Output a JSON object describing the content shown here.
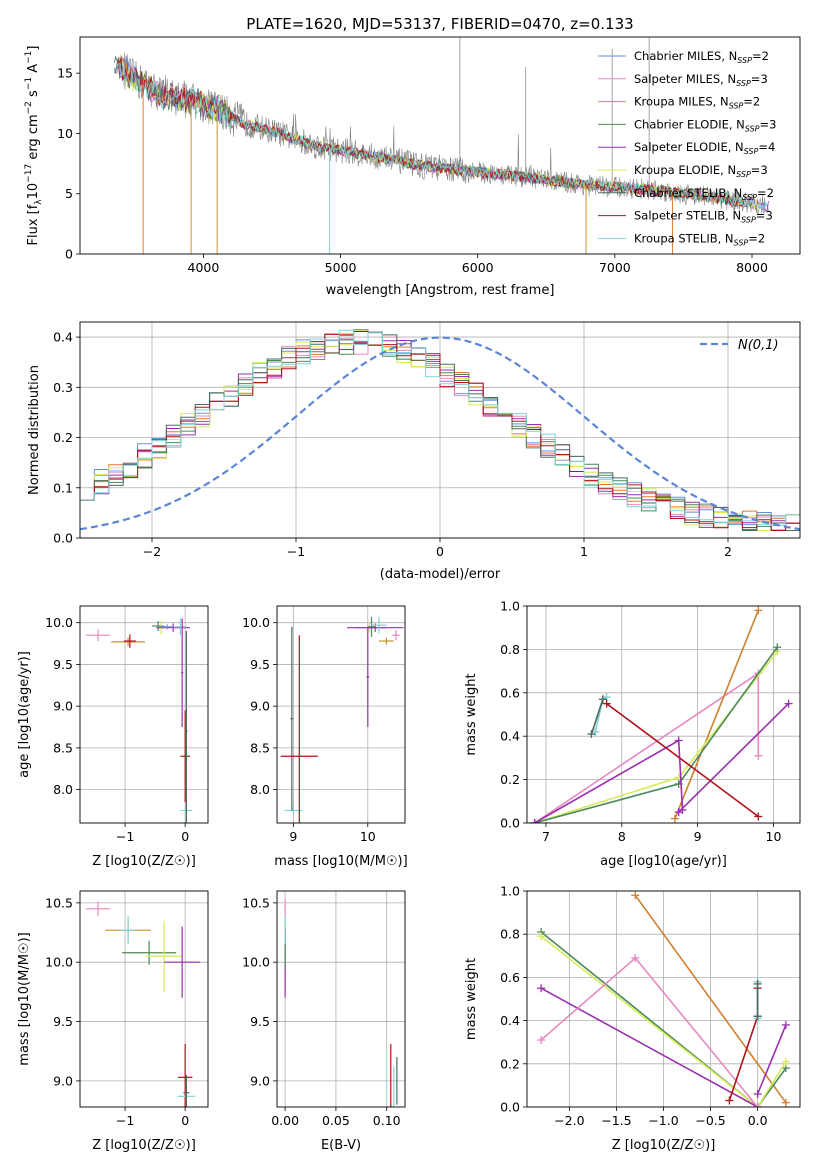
{
  "figure_title": "PLATE=1620, MJD=53137, FIBERID=0470, z=0.133",
  "series_styles": [
    {
      "name": "Chabrier MILES",
      "nssp": "2",
      "color": "#6a8fd6"
    },
    {
      "name": "Salpeter MILES",
      "nssp": "3",
      "color": "#e888c0"
    },
    {
      "name": "Kroupa MILES",
      "nssp": "2",
      "color": "#c8922e"
    },
    {
      "name": "Chabrier ELODIE",
      "nssp": "3",
      "color": "#4d8a5a"
    },
    {
      "name": "Salpeter ELODIE",
      "nssp": "4",
      "color": "#9b2fae"
    },
    {
      "name": "Kroupa ELODIE",
      "nssp": "3",
      "color": "#d6ec5a"
    },
    {
      "name": "Chabrier STELIB",
      "nssp": "2",
      "color": "#4a6a5a"
    },
    {
      "name": "Salpeter STELIB",
      "nssp": "3",
      "color": "#b0101a"
    },
    {
      "name": "Kroupa STELIB",
      "nssp": "2",
      "color": "#7fd3d8"
    }
  ],
  "chart_data": [
    {
      "id": "spectrum",
      "type": "line",
      "xlabel": "wavelength [Angstrom, rest frame]",
      "ylabel_parts": {
        "a": "Flux [f",
        "b": "λ",
        "c": "10",
        "d": "−17",
        "e": " erg cm",
        "f": "−2",
        "g": " s",
        "h": "−1",
        "i": " A",
        "j": "−1",
        "k": "]"
      },
      "xlim": [
        3100,
        8350
      ],
      "ylim": [
        0,
        18
      ],
      "xticks": [
        4000,
        5000,
        6000,
        7000,
        8000
      ],
      "yticks": [
        0,
        5,
        10,
        15
      ],
      "grid": false,
      "legend": "upper right",
      "legend_suffix": {
        "n": ", N",
        "sub": "SSP",
        "eq": "="
      },
      "data_color": "#808080",
      "continuum": {
        "x": [
          3350,
          3500,
          3700,
          3900,
          4100,
          4300,
          4500,
          4800,
          5200,
          5600,
          6000,
          6400,
          6800,
          7200,
          7600,
          8100
        ],
        "y": [
          16.0,
          14.5,
          13.2,
          12.8,
          12.0,
          10.8,
          10.2,
          9.0,
          8.2,
          7.3,
          6.8,
          6.3,
          5.7,
          5.4,
          4.9,
          4.0
        ]
      }
    },
    {
      "id": "residuals",
      "type": "step",
      "xlabel": "(data-model)/error",
      "ylabel": "Normed distribution",
      "xlim": [
        -2.5,
        2.5
      ],
      "ylim": [
        0,
        0.43
      ],
      "xticks": [
        -2,
        -1,
        0,
        1,
        2
      ],
      "yticks": [
        0.0,
        0.1,
        0.2,
        0.3,
        0.4
      ],
      "grid": true,
      "legend": "upper right",
      "normal_label": "N(0,1)",
      "normal_color": "#5b86d6",
      "bin_width": 0.1
    },
    {
      "id": "age-vs-Z",
      "type": "errorbar",
      "xlabel": "Z [log10(Z/Z☉)]",
      "ylabel": "age  [log10(age/yr)]",
      "xlim": [
        -1.75,
        0.38
      ],
      "ylim": [
        7.6,
        10.2
      ],
      "xticks": [
        -1,
        0
      ],
      "yticks": [
        8.0,
        8.5,
        9.0,
        9.5,
        10.0
      ],
      "grid": true,
      "points": [
        {
          "s": 1,
          "x": -1.45,
          "y": 9.85,
          "xe": 0.2,
          "ye": 0.07
        },
        {
          "s": 2,
          "x": -0.95,
          "y": 9.77,
          "xe": 0.28,
          "ye": 0.05
        },
        {
          "s": 7,
          "x": -0.92,
          "y": 9.78,
          "xe": 0.1,
          "ye": 0.08
        },
        {
          "s": 3,
          "x": -0.45,
          "y": 9.96,
          "xe": 0.1,
          "ye": 0.06
        },
        {
          "s": 5,
          "x": -0.4,
          "y": 9.94,
          "xe": 0.05,
          "ye": 0.08
        },
        {
          "s": 4,
          "x": -0.2,
          "y": 9.94,
          "xe": 0.28,
          "ye": 0.05
        },
        {
          "s": 0,
          "x": -0.3,
          "y": 9.95,
          "xe": 0.12,
          "ye": 0.03
        },
        {
          "s": 8,
          "x": -0.08,
          "y": 9.95,
          "xe": 0.08,
          "ye": 0.1
        },
        {
          "s": 4,
          "x": -0.05,
          "y": 9.4,
          "xe": 0.02,
          "ye": 0.65
        },
        {
          "s": 7,
          "x": 0.0,
          "y": 8.4,
          "xe": 0.08,
          "ye": 0.55
        },
        {
          "s": 8,
          "x": 0.02,
          "y": 7.75,
          "xe": 0.1,
          "ye": 0.05
        },
        {
          "s": 6,
          "x": 0.02,
          "y": 8.7,
          "xe": 0.02,
          "ye": 1.2
        }
      ]
    },
    {
      "id": "age-vs-mass",
      "type": "errorbar",
      "xlabel": "mass [log10(M/M☉)]",
      "ylabel": "",
      "xlim": [
        8.78,
        10.5
      ],
      "ylim": [
        7.6,
        10.2
      ],
      "xticks": [
        9,
        10
      ],
      "yticks": [
        8.0,
        8.5,
        9.0,
        9.5,
        10.0
      ],
      "grid": true,
      "points": [
        {
          "s": 8,
          "x": 9.0,
          "y": 7.75,
          "xe": 0.12,
          "ye": 0.05
        },
        {
          "s": 6,
          "x": 8.98,
          "y": 8.85,
          "xe": 0.02,
          "ye": 1.1
        },
        {
          "s": 7,
          "x": 9.08,
          "y": 8.4,
          "xe": 0.25,
          "ye": 1.45
        },
        {
          "s": 4,
          "x": 10.0,
          "y": 9.35,
          "xe": 0.02,
          "ye": 0.6
        },
        {
          "s": 5,
          "x": 10.02,
          "y": 9.94,
          "xe": 0.05,
          "ye": 0.06
        },
        {
          "s": 0,
          "x": 10.05,
          "y": 9.94,
          "xe": 0.2,
          "ye": 0.03
        },
        {
          "s": 3,
          "x": 10.05,
          "y": 9.95,
          "xe": 0.05,
          "ye": 0.12
        },
        {
          "s": 4,
          "x": 10.1,
          "y": 9.94,
          "xe": 0.38,
          "ye": 0.05
        },
        {
          "s": 8,
          "x": 10.15,
          "y": 9.97,
          "xe": 0.1,
          "ye": 0.1
        },
        {
          "s": 1,
          "x": 10.38,
          "y": 9.85,
          "xe": 0.05,
          "ye": 0.06
        },
        {
          "s": 2,
          "x": 10.25,
          "y": 9.78,
          "xe": 0.1,
          "ye": 0.04
        }
      ]
    },
    {
      "id": "weight-vs-age",
      "type": "line",
      "xlabel": "age  [log10(age/yr)]",
      "ylabel": "mass weight",
      "xlim": [
        6.75,
        10.35
      ],
      "ylim": [
        0,
        1
      ],
      "xticks": [
        7,
        8,
        9,
        10
      ],
      "yticks": [
        0.0,
        0.2,
        0.4,
        0.6,
        0.8,
        1.0
      ],
      "grid": true,
      "lines": [
        {
          "s": 8,
          "x": [
            7.65,
            7.75,
            7.8
          ],
          "y": [
            0.42,
            0.57,
            0.58
          ]
        },
        {
          "s": 6,
          "x": [
            7.6,
            7.75
          ],
          "y": [
            0.41,
            0.57
          ]
        },
        {
          "s": 1,
          "x": [
            6.85,
            9.8,
            9.8
          ],
          "y": [
            0.0,
            0.69,
            0.31
          ]
        },
        {
          "s": 2,
          "x": [
            8.7,
            9.8
          ],
          "y": [
            0.02,
            0.98
          ]
        },
        {
          "s": 5,
          "x": [
            6.85,
            8.75,
            10.05
          ],
          "y": [
            0.0,
            0.21,
            0.79
          ]
        },
        {
          "s": 3,
          "x": [
            6.85,
            8.75,
            10.05
          ],
          "y": [
            0.0,
            0.18,
            0.81
          ]
        },
        {
          "s": 4,
          "x": [
            8.75,
            10.2
          ],
          "y": [
            0.05,
            0.55
          ]
        },
        {
          "s": 4,
          "x": [
            6.85,
            8.75,
            8.8
          ],
          "y": [
            0.0,
            0.38,
            0.06
          ]
        },
        {
          "s": 7,
          "x": [
            7.8,
            9.8
          ],
          "y": [
            0.55,
            0.03
          ]
        }
      ]
    },
    {
      "id": "mass-vs-Z",
      "type": "errorbar",
      "xlabel": "Z [log10(Z/Z☉)]",
      "ylabel": "mass [log10(M/M☉)]",
      "xlim": [
        -1.75,
        0.38
      ],
      "ylim": [
        8.78,
        10.6
      ],
      "xticks": [
        -1,
        0
      ],
      "yticks": [
        9.0,
        9.5,
        10.0,
        10.5
      ],
      "grid": true,
      "points": [
        {
          "s": 1,
          "x": -1.45,
          "y": 10.45,
          "xe": 0.2,
          "ye": 0.06
        },
        {
          "s": 2,
          "x": -0.95,
          "y": 10.27,
          "xe": 0.38,
          "ye": 0.08
        },
        {
          "s": 8,
          "x": -0.95,
          "y": 10.27,
          "xe": 0.12,
          "ye": 0.12
        },
        {
          "s": 3,
          "x": -0.6,
          "y": 10.08,
          "xe": 0.45,
          "ye": 0.1
        },
        {
          "s": 5,
          "x": -0.35,
          "y": 10.05,
          "xe": 0.3,
          "ye": 0.3
        },
        {
          "s": 4,
          "x": -0.05,
          "y": 10.0,
          "xe": 0.3,
          "ye": 0.3
        },
        {
          "s": 7,
          "x": 0.0,
          "y": 9.03,
          "xe": 0.12,
          "ye": 0.28
        },
        {
          "s": 8,
          "x": 0.02,
          "y": 8.87,
          "xe": 0.15,
          "ye": 0.05
        },
        {
          "s": 6,
          "x": 0.02,
          "y": 8.9,
          "xe": 0.05,
          "ye": 0.15
        }
      ]
    },
    {
      "id": "mass-vs-ebv",
      "type": "errorbar",
      "xlabel": "E(B-V)",
      "ylabel": "",
      "xlim": [
        -0.008,
        0.118
      ],
      "ylim": [
        8.78,
        10.6
      ],
      "xticks": [
        0.0,
        0.05,
        0.1
      ],
      "yticks": [
        9.0,
        9.5,
        10.0,
        10.5
      ],
      "grid": true,
      "points": [
        {
          "s": 1,
          "x": 0.0,
          "y": 10.45,
          "xe": 0.0,
          "ye": 0.08
        },
        {
          "s": 2,
          "x": 0.0,
          "y": 10.27,
          "xe": 0.0,
          "ye": 0.08
        },
        {
          "s": 5,
          "x": 0.0,
          "y": 10.05,
          "xe": 0.0,
          "ye": 0.3
        },
        {
          "s": 4,
          "x": 0.0,
          "y": 10.0,
          "xe": 0.0,
          "ye": 0.3
        },
        {
          "s": 3,
          "x": 0.0,
          "y": 10.08,
          "xe": 0.0,
          "ye": 0.12
        },
        {
          "s": 8,
          "x": 0.0,
          "y": 10.27,
          "xe": 0.0,
          "ye": 0.12
        },
        {
          "s": 7,
          "x": 0.104,
          "y": 9.03,
          "xe": 0.0,
          "ye": 0.28
        },
        {
          "s": 8,
          "x": 0.107,
          "y": 8.92,
          "xe": 0.0,
          "ye": 0.2
        },
        {
          "s": 6,
          "x": 0.11,
          "y": 9.0,
          "xe": 0.0,
          "ye": 0.2
        }
      ]
    },
    {
      "id": "weight-vs-Z",
      "type": "line",
      "xlabel": "Z [log10(Z/Z☉)]",
      "ylabel": "mass weight",
      "xlim": [
        -2.45,
        0.45
      ],
      "ylim": [
        0,
        1
      ],
      "xticks": [
        -2.0,
        -1.5,
        -1.0,
        -0.5,
        0.0
      ],
      "yticks": [
        0.0,
        0.2,
        0.4,
        0.6,
        0.8,
        1.0
      ],
      "grid": true,
      "lines": [
        {
          "s": 2,
          "x": [
            -1.3,
            0.3
          ],
          "y": [
            0.98,
            0.02
          ]
        },
        {
          "s": 3,
          "x": [
            -2.3,
            0.0,
            0.3
          ],
          "y": [
            0.81,
            0.0,
            0.18
          ]
        },
        {
          "s": 5,
          "x": [
            -2.3,
            0.0,
            0.3
          ],
          "y": [
            0.79,
            0.0,
            0.21
          ]
        },
        {
          "s": 4,
          "x": [
            -2.3,
            0.0
          ],
          "y": [
            0.55,
            0.0
          ]
        },
        {
          "s": 4,
          "x": [
            0.0,
            0.3
          ],
          "y": [
            0.06,
            0.38
          ]
        },
        {
          "s": 1,
          "x": [
            -2.3,
            -1.3,
            0.0
          ],
          "y": [
            0.31,
            0.69,
            0.0
          ]
        },
        {
          "s": 7,
          "x": [
            -0.3,
            0.0,
            0.0
          ],
          "y": [
            0.03,
            0.42,
            0.55
          ]
        },
        {
          "s": 8,
          "x": [
            0.0,
            0.0
          ],
          "y": [
            0.41,
            0.58
          ]
        },
        {
          "s": 6,
          "x": [
            0.0,
            0.0
          ],
          "y": [
            0.42,
            0.57
          ]
        }
      ]
    }
  ]
}
